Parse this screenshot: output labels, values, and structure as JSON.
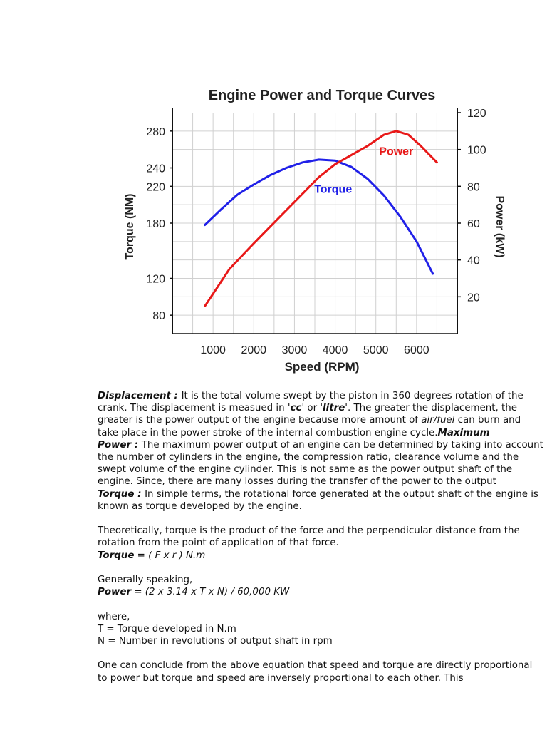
{
  "chart_data": {
    "type": "line",
    "title": "Engine Power and Torque Curves",
    "xlabel": "Speed (RPM)",
    "ylabel_left": "Torque (NM)",
    "ylabel_right": "Power (kW)",
    "xlim": [
      0,
      7000
    ],
    "ylim_left": [
      60,
      300
    ],
    "ylim_right": [
      0,
      120
    ],
    "xticks": [
      "1000",
      "2000",
      "3000",
      "4000",
      "5000",
      "6000"
    ],
    "yticks_left": [
      "80",
      "120",
      "180",
      "220",
      "240",
      "280"
    ],
    "yticks_right": [
      "20",
      "40",
      "60",
      "80",
      "100",
      "120"
    ],
    "grid": true,
    "series": [
      {
        "name": "Torque",
        "axis": "left",
        "color": "#2020e8",
        "x": [
          800,
          1200,
          1600,
          2000,
          2400,
          2800,
          3200,
          3600,
          4000,
          4400,
          4800,
          5200,
          5600,
          6000,
          6400
        ],
        "y": [
          178,
          195,
          211,
          222,
          232,
          240,
          246,
          249,
          248,
          241,
          228,
          210,
          187,
          160,
          125
        ]
      },
      {
        "name": "Power",
        "axis": "right",
        "color": "#e81818",
        "x": [
          800,
          1100,
          1400,
          1700,
          2000,
          2400,
          2800,
          3200,
          3600,
          4000,
          4400,
          4800,
          5200,
          5500,
          5800,
          6100,
          6500
        ],
        "y": [
          15,
          25,
          35,
          42,
          49,
          58,
          67,
          76,
          85,
          92,
          97,
          102,
          108,
          110,
          108,
          102,
          93
        ]
      }
    ]
  },
  "document": {
    "lines": [
      [
        {
          "t": "Displacement : ",
          "s": "bi"
        },
        {
          "t": "It is the total volume swept by the piston in 360 degrees rotation of the"
        }
      ],
      [
        {
          "t": "crank. The displacement is measued in '"
        },
        {
          "t": "cc",
          "s": "bi"
        },
        {
          "t": "' or '"
        },
        {
          "t": "litre",
          "s": "bi"
        },
        {
          "t": "'. The greater the displacement, the"
        }
      ],
      [
        {
          "t": "greater is the power output of the engine because more amount of "
        },
        {
          "t": "air/fuel",
          "s": "it"
        },
        {
          "t": " can burn and"
        }
      ],
      [
        {
          "t": "take place in the power stroke of the internal combustion engine cycle."
        },
        {
          "t": "Maximum",
          "s": "bi"
        }
      ],
      [
        {
          "t": "Power : ",
          "s": "bi"
        },
        {
          "t": "The maximum power output of an engine can be determined by taking into account"
        }
      ],
      [
        {
          "t": "the number of cylinders in the engine, the compression ratio, clearance volume and the"
        }
      ],
      [
        {
          "t": "swept volume of the engine cylinder. This is not same as the power output shaft of the"
        }
      ],
      [
        {
          "t": "engine. Since, there are many losses during the transfer of the power to the output"
        }
      ],
      [
        {
          "t": "Torque : ",
          "s": "bi"
        },
        {
          "t": "In simple terms, the rotational force generated at the output shaft of the engine is"
        }
      ],
      [
        {
          "t": "known as torque developed by the engine."
        }
      ],
      [],
      [
        {
          "t": "Theoretically, torque is the product of the force and the perpendicular distance from the"
        }
      ],
      [
        {
          "t": "rotation from the point of application of that force."
        }
      ],
      [
        {
          "t": "Torque",
          "s": "bi"
        },
        {
          "t": " = ( F x r ) N.m",
          "s": "it"
        }
      ],
      [],
      [
        {
          "t": "Generally speaking,"
        }
      ],
      [
        {
          "t": "Power",
          "s": "bi"
        },
        {
          "t": " = (2 x 3.14 x T x N) / 60,000  KW",
          "s": "it"
        }
      ],
      [],
      [
        {
          "t": "where,"
        }
      ],
      [
        {
          "t": " T = Torque developed in N.m"
        }
      ],
      [
        {
          "t": "N = Number in revolutions of output shaft in rpm"
        }
      ],
      [],
      [
        {
          "t": "One can conclude from the above equation that speed and torque are directly proportional"
        }
      ],
      [
        {
          "t": "to power but torque and speed are inversely proportional to each other. This"
        }
      ]
    ]
  }
}
